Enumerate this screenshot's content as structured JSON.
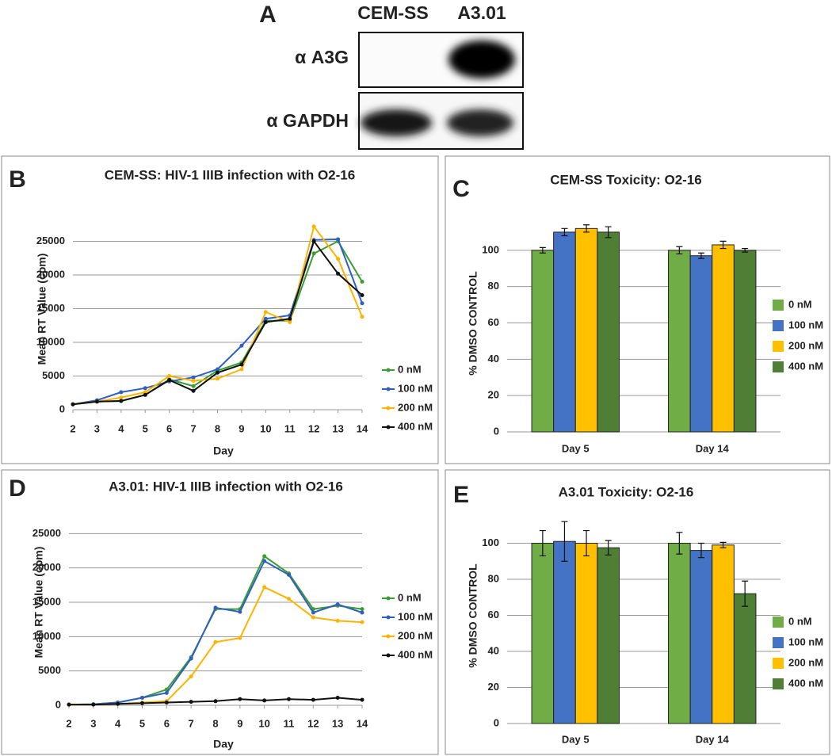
{
  "blot": {
    "panel_label": "A",
    "lanes": [
      "CEM-SS",
      "A3.01"
    ],
    "rows": [
      "α A3G",
      "α GAPDH"
    ]
  },
  "chart_data": [
    {
      "type": "line",
      "panel_label": "B",
      "title": "CEM-SS: HIV-1 IIIB infection with O2-16",
      "x_label": "Day",
      "y_label": "Mean RT Value (cpm)",
      "x": [
        2,
        3,
        4,
        5,
        6,
        7,
        8,
        9,
        10,
        11,
        12,
        13,
        14
      ],
      "xlim": [
        2,
        14
      ],
      "xticks": [
        2,
        3,
        4,
        5,
        6,
        7,
        8,
        9,
        10,
        11,
        12,
        13,
        14
      ],
      "ylim": [
        0,
        30000
      ],
      "yticks": [
        0,
        5000,
        10000,
        15000,
        20000,
        25000
      ],
      "grid": true,
      "legend": "right",
      "series": [
        {
          "name": "0 nM",
          "color": "#3a9e2e",
          "values": [
            800,
            1200,
            1300,
            2200,
            4500,
            3500,
            5800,
            7000,
            13200,
            13200,
            23200,
            25000,
            19000
          ]
        },
        {
          "name": "100 nM",
          "color": "#2f5fc4",
          "values": [
            800,
            1400,
            2600,
            3200,
            4200,
            4800,
            6000,
            9500,
            13500,
            14000,
            25200,
            25300,
            15800
          ]
        },
        {
          "name": "200 nM",
          "color": "#ffb300",
          "values": [
            800,
            1200,
            1800,
            2600,
            5000,
            4300,
            4600,
            6000,
            14500,
            13000,
            27200,
            22400,
            13800
          ]
        },
        {
          "name": "400 nM",
          "color": "#111111",
          "values": [
            800,
            1200,
            1300,
            2200,
            4400,
            2800,
            5500,
            6700,
            13000,
            13500,
            25000,
            20200,
            17000
          ]
        }
      ]
    },
    {
      "type": "bar",
      "panel_label": "C",
      "title": "CEM-SS Toxicity: O2-16",
      "y_label": "% DMSO CONTROL",
      "categories": [
        "Day 5",
        "Day 14"
      ],
      "ylim": [
        0,
        120
      ],
      "yticks": [
        0,
        20,
        40,
        60,
        80,
        100
      ],
      "grid": true,
      "legend": "right",
      "series": [
        {
          "name": "0 nM",
          "color": "#70ad47",
          "values": [
            100,
            100
          ],
          "errors": [
            1.5,
            2
          ]
        },
        {
          "name": "100 nM",
          "color": "#4472c4",
          "values": [
            110,
            97
          ],
          "errors": [
            2,
            1.5
          ]
        },
        {
          "name": "200 nM",
          "color": "#ffc000",
          "values": [
            112,
            103
          ],
          "errors": [
            2,
            2
          ]
        },
        {
          "name": "400 nM",
          "color": "#4e7f34",
          "values": [
            110,
            100
          ],
          "errors": [
            3,
            1
          ]
        }
      ]
    },
    {
      "type": "line",
      "panel_label": "D",
      "title": "A3.01: HIV-1 IIIB infection with O2-16",
      "x_label": "Day",
      "y_label": "Mean RT Value (cpm)",
      "x": [
        2,
        3,
        4,
        5,
        6,
        7,
        8,
        9,
        10,
        11,
        12,
        13,
        14
      ],
      "xlim": [
        2,
        14
      ],
      "xticks": [
        2,
        3,
        4,
        5,
        6,
        7,
        8,
        9,
        10,
        11,
        12,
        13,
        14
      ],
      "ylim": [
        0,
        30000
      ],
      "yticks": [
        0,
        5000,
        10000,
        15000,
        20000,
        25000
      ],
      "grid": true,
      "legend": "right",
      "series": [
        {
          "name": "0 nM",
          "color": "#3a9e2e",
          "values": [
            100,
            150,
            400,
            1100,
            2300,
            7000,
            14000,
            14000,
            21700,
            19200,
            14000,
            14500,
            14000
          ]
        },
        {
          "name": "100 nM",
          "color": "#2f5fc4",
          "values": [
            100,
            150,
            400,
            1100,
            1800,
            6800,
            14200,
            13600,
            21000,
            19000,
            13500,
            14700,
            13500
          ]
        },
        {
          "name": "200 nM",
          "color": "#ffb300",
          "values": [
            100,
            100,
            200,
            400,
            600,
            4200,
            9200,
            9800,
            17200,
            15500,
            12800,
            12300,
            12100
          ]
        },
        {
          "name": "400 nM",
          "color": "#111111",
          "values": [
            100,
            100,
            200,
            300,
            400,
            500,
            600,
            900,
            700,
            900,
            800,
            1100,
            800
          ]
        }
      ]
    },
    {
      "type": "bar",
      "panel_label": "E",
      "title": "A3.01 Toxicity: O2-16",
      "y_label": "% DMSO CONTROL",
      "categories": [
        "Day 5",
        "Day 14"
      ],
      "ylim": [
        0,
        120
      ],
      "yticks": [
        0,
        20,
        40,
        60,
        80,
        100
      ],
      "grid": true,
      "legend": "right",
      "series": [
        {
          "name": "0 nM",
          "color": "#70ad47",
          "values": [
            100,
            100
          ],
          "errors": [
            7,
            6
          ]
        },
        {
          "name": "100 nM",
          "color": "#4472c4",
          "values": [
            101,
            96
          ],
          "errors": [
            11,
            4
          ]
        },
        {
          "name": "200 nM",
          "color": "#ffc000",
          "values": [
            100,
            99
          ],
          "errors": [
            7,
            1.5
          ]
        },
        {
          "name": "400 nM",
          "color": "#4e7f34",
          "values": [
            97.5,
            72
          ],
          "errors": [
            4,
            7
          ]
        }
      ]
    }
  ]
}
